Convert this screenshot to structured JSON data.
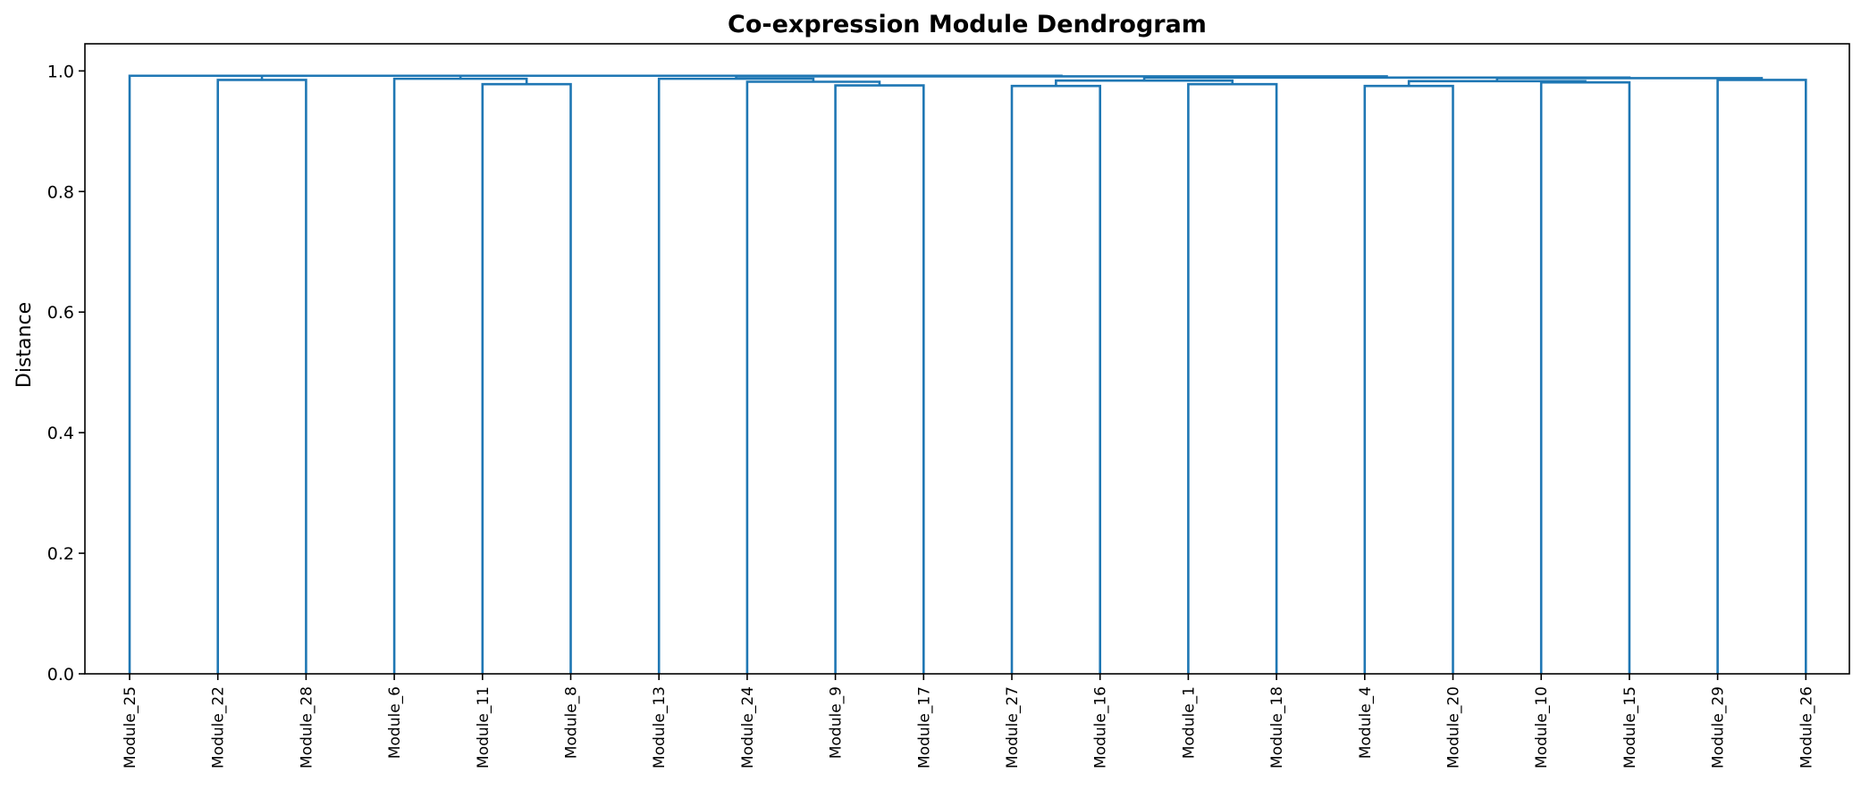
{
  "chart_data": {
    "type": "dendrogram",
    "title": "Co-expression Module Dendrogram",
    "xlabel": "",
    "ylabel": "Distance",
    "ylim": [
      0,
      1.045
    ],
    "yticks": [
      "0.0",
      "0.2",
      "0.4",
      "0.6",
      "0.8",
      "1.0"
    ],
    "grid": false,
    "legend": "none",
    "color": "#1f77b4",
    "leaves": [
      "Module_25",
      "Module_22",
      "Module_28",
      "Module_6",
      "Module_11",
      "Module_8",
      "Module_13",
      "Module_24",
      "Module_9",
      "Module_17",
      "Module_27",
      "Module_16",
      "Module_1",
      "Module_18",
      "Module_4",
      "Module_20",
      "Module_10",
      "Module_15",
      "Module_29",
      "Module_26"
    ],
    "merges": [
      {
        "left": "Module_22",
        "right": "Module_28",
        "height": 0.985
      },
      {
        "left": "Module_25",
        "right": "Module_22+Module_28",
        "height": 0.992
      },
      {
        "left": "Module_11",
        "right": "Module_8",
        "height": 0.978
      },
      {
        "left": "Module_6",
        "right": "Module_11+Module_8",
        "height": 0.987
      },
      {
        "left": "Module_25+Module_22+Module_28",
        "right": "Module_6+Module_11+Module_8",
        "height": 0.992
      },
      {
        "left": "Module_9",
        "right": "Module_17",
        "height": 0.976
      },
      {
        "left": "Module_24",
        "right": "Module_9+Module_17",
        "height": 0.982
      },
      {
        "left": "Module_13",
        "right": "Module_24+Module_9+Module_17",
        "height": 0.987
      },
      {
        "left": "Module_27",
        "right": "Module_16",
        "height": 0.975
      },
      {
        "left": "Module_1",
        "right": "Module_18",
        "height": 0.978
      },
      {
        "left": "Module_27+Module_16",
        "right": "Module_1+Module_18",
        "height": 0.984
      },
      {
        "left": "Module_4",
        "right": "Module_20",
        "height": 0.975
      },
      {
        "left": "Module_10",
        "right": "Module_15",
        "height": 0.981
      },
      {
        "left": "Module_4+Module_20",
        "right": "Module_10+Module_15",
        "height": 0.983
      },
      {
        "left": "Module_29",
        "right": "Module_26",
        "height": 0.985
      },
      {
        "left": "Module_4+Module_20+Module_10+Module_15",
        "right": "Module_29+Module_26",
        "height": 0.988
      },
      {
        "left": "Module_27+Module_16+Module_1+Module_18",
        "right": "Module_4+Module_20+Module_10+Module_15+Module_29+Module_26",
        "height": 0.989
      },
      {
        "left": "Module_13+Module_24+Module_9+Module_17",
        "right": "Module_27+Module_16+Module_1+Module_18+Module_4+Module_20+Module_10+Module_15+Module_29+Module_26",
        "height": 0.991
      },
      {
        "left": "Module_25+Module_22+Module_28+Module_6+Module_11+Module_8",
        "right": "Module_13+Module_24+Module_9+Module_17+Module_27+Module_16+Module_1+Module_18+Module_4+Module_20+Module_10+Module_15+Module_29+Module_26",
        "height": 0.992
      }
    ]
  }
}
